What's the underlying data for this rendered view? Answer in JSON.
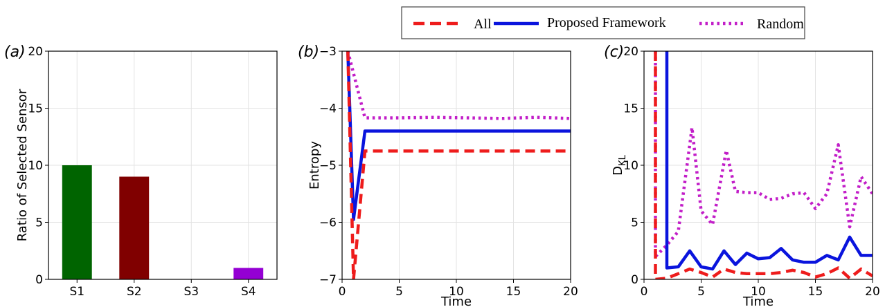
{
  "legend": {
    "placement": "top-right",
    "entries": [
      {
        "label": "All",
        "color": "#ee1c1c",
        "style": "dashed"
      },
      {
        "label": "Proposed Framework",
        "color": "#0a14dd",
        "style": "solid"
      },
      {
        "label": "Random",
        "color": "#c21ec8",
        "style": "dotted"
      }
    ]
  },
  "chart_data": [
    {
      "panel": "(a)",
      "type": "bar",
      "categories": [
        "S1",
        "S2",
        "S3",
        "S4"
      ],
      "values": [
        10,
        9,
        0,
        1
      ],
      "colors": [
        "#006400",
        "#800000",
        "#999999",
        "#9400d3"
      ],
      "xlabel": "",
      "ylabel": "Ratio of Selected Sensor",
      "ylim": [
        0,
        20
      ],
      "yticks": [
        0,
        5,
        10,
        15,
        20
      ],
      "grid": true
    },
    {
      "panel": "(b)",
      "type": "line",
      "xlabel": "Time",
      "ylabel": "Entropy",
      "xlim": [
        0,
        20
      ],
      "ylim": [
        -7,
        -3
      ],
      "xticks": [
        0,
        5,
        10,
        15,
        20
      ],
      "yticks": [
        -7,
        -6,
        -5,
        -4,
        -3
      ],
      "grid": true,
      "series": [
        {
          "name": "All",
          "x": [
            0.5,
            1.0,
            2.0,
            20.0
          ],
          "values": [
            -3.0,
            -7.0,
            -4.75,
            -4.75
          ]
        },
        {
          "name": "Proposed Framework",
          "x": [
            0.5,
            1.0,
            2.0,
            20.0
          ],
          "values": [
            -3.0,
            -5.95,
            -4.4,
            -4.4
          ]
        },
        {
          "name": "Random",
          "x": [
            0.5,
            2.0,
            5.0,
            8.0,
            11.0,
            14.0,
            17.0,
            20.0
          ],
          "values": [
            -3.0,
            -4.17,
            -4.17,
            -4.16,
            -4.17,
            -4.18,
            -4.16,
            -4.18
          ]
        }
      ]
    },
    {
      "panel": "(c)",
      "type": "line",
      "xlabel": "Time",
      "ylabel_main": "D",
      "ylabel_sub": "KL",
      "xlim": [
        0,
        20
      ],
      "ylim": [
        0,
        20
      ],
      "xticks": [
        0,
        5,
        10,
        15,
        20
      ],
      "yticks": [
        0,
        5,
        10,
        15,
        20
      ],
      "grid": true,
      "series": [
        {
          "name": "All",
          "x": [
            1,
            1,
            2,
            3,
            4,
            5,
            6,
            7,
            8,
            9,
            10,
            11,
            12,
            13,
            14,
            15,
            16,
            17,
            18,
            19,
            20
          ],
          "values": [
            20,
            0.0,
            0.1,
            0.5,
            0.9,
            0.6,
            0.2,
            0.9,
            0.6,
            0.5,
            0.5,
            0.5,
            0.6,
            0.8,
            0.6,
            0.2,
            0.5,
            1.0,
            0.1,
            0.9,
            0.3
          ]
        },
        {
          "name": "Proposed Framework",
          "x": [
            2,
            2,
            3,
            4,
            5,
            6,
            7,
            8,
            9,
            10,
            11,
            12,
            13,
            14,
            15,
            16,
            17,
            18,
            19,
            20
          ],
          "values": [
            20,
            1.0,
            1.1,
            2.5,
            1.1,
            0.9,
            2.5,
            1.3,
            2.3,
            1.8,
            1.9,
            2.7,
            1.7,
            1.5,
            1.5,
            2.1,
            1.7,
            3.7,
            2.1,
            2.1
          ]
        },
        {
          "name": "Random",
          "x": [
            1,
            1,
            2,
            3,
            4.2,
            5,
            6,
            7.2,
            8,
            9,
            10,
            11,
            12,
            13,
            14,
            15,
            16,
            17,
            18,
            19,
            20
          ],
          "values": [
            20,
            2.0,
            3.0,
            4.2,
            13.3,
            6.0,
            4.8,
            11.3,
            7.7,
            7.6,
            7.6,
            7.0,
            7.1,
            7.5,
            7.6,
            6.2,
            7.5,
            11.8,
            4.6,
            9.0,
            7.5
          ]
        }
      ]
    }
  ]
}
